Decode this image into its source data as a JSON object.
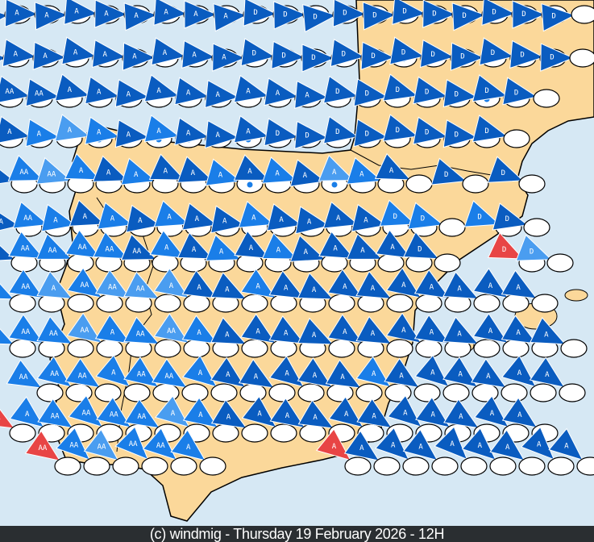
{
  "footer": {
    "credit": "(c) windmig - Thursday 19 February 2026 - 12H"
  },
  "colors": {
    "sea": "#d6e8f4",
    "land": "#fbd89a",
    "dark": "#0a5cc0",
    "mid": "#1a7ee8",
    "light": "#4a9df0",
    "red": "#e84545",
    "rain": "#1a7ee8"
  },
  "legend_note": "",
  "rows": [
    {
      "dir": 0,
      "tokens": [
        "A",
        "A",
        "A",
        "A",
        "A",
        "A",
        "A",
        "A",
        "A",
        "D",
        "D*",
        "D*",
        "D",
        "D*",
        "D*",
        "D",
        "D*",
        "D*",
        "D",
        "D"
      ]
    },
    {
      "dir": 5,
      "tokens": [
        "A",
        "A",
        "A",
        "A",
        "A",
        "A",
        "A",
        "A",
        "A",
        "D",
        "D",
        "D",
        "D",
        "D*",
        "D*",
        "D*",
        "D",
        "D*",
        "D*",
        "D"
      ]
    },
    {
      "dir": 10,
      "tokens": [
        "AA",
        "AA",
        "AA",
        "A",
        "A",
        "A",
        "A",
        "A",
        "A",
        "A",
        "A",
        "A",
        "D",
        "D",
        "D",
        "D*",
        "D*",
        "D",
        "D",
        "-"
      ]
    },
    {
      "dir": 10,
      "tokens": [
        "AA",
        "A",
        "A:m",
        "A*:l",
        "A:m",
        "A*",
        "A*:m",
        "A",
        "A*",
        "A*",
        "D",
        "D",
        "D",
        "D",
        "D",
        "D",
        "D",
        "D",
        "-",
        "-"
      ]
    },
    {
      "dir": 20,
      "tokens": [
        "AA",
        "AA:m",
        "AA:l",
        "A:m",
        "A",
        "A:m",
        "A",
        "A",
        "A*:m",
        "A",
        "A:m",
        "A*",
        "A:l",
        "A:m",
        "A",
        "-",
        "D",
        "-",
        "D",
        "-"
      ]
    },
    {
      "dir": 15,
      "tokens": [
        "AA",
        "AA:m",
        "A:m",
        "A",
        "A:m",
        "A",
        "A:m",
        "A",
        "A",
        "A:m",
        "A",
        "A",
        "A",
        "A",
        "D:m",
        "D:m",
        "-",
        "D:m",
        "D",
        "-"
      ]
    },
    {
      "dir": 25,
      "tokens": [
        "AA",
        "AA:m",
        "AA:m",
        "AA:m",
        "AA:m",
        "AA",
        "A:m",
        "A",
        "A:m",
        "A",
        "A:m",
        "A",
        "A",
        "A",
        "A",
        "D",
        "-",
        "-",
        "D:r",
        "D:l"
      ]
    },
    {
      "dir": 30,
      "tokens": [
        "AA:m",
        "AA:m",
        "A:l",
        "AA:m",
        "AA:l",
        "AA:l",
        "A:l",
        "A",
        "A",
        "A:m",
        "A",
        "A",
        "A",
        "A",
        "A",
        "A",
        "A",
        "A",
        "A",
        "-"
      ]
    },
    {
      "dir": 30,
      "tokens": [
        "AA:m",
        "AA:m",
        "AA:m",
        "AA:l",
        "A:m",
        "AA:m",
        "AA:l",
        "A:m",
        "A",
        "A",
        "A",
        "A",
        "A",
        "A",
        "A",
        "A",
        "A",
        "A",
        "A",
        "A"
      ]
    },
    {
      "dir": 35,
      "tokens": [
        "AA:m",
        "AA:m",
        "AA:m",
        "A:m",
        "AA:m",
        "AA:m",
        "A:m",
        "A",
        "A",
        "A",
        "A",
        "A",
        "A:m",
        "A",
        "A",
        "A",
        "A",
        "A",
        "A",
        "-"
      ]
    },
    {
      "dir": 35,
      "tokens": [
        "AA:r",
        "A:m",
        "AA:m",
        "AA:m",
        "AA:m",
        "AA:m",
        "A:l",
        "A:m",
        "A",
        "A",
        "A",
        "A",
        "A",
        "A",
        "A",
        "A",
        "A",
        "A",
        "A",
        "-"
      ]
    },
    {
      "dir": 40,
      "tokens": [
        "AA:r",
        "AA:m",
        "AA:l",
        "AA:m",
        "AA:m",
        "A:m",
        "-",
        "-",
        "-",
        "-",
        "A:r",
        "A",
        "A",
        "A",
        "A",
        "A",
        "A",
        "A",
        "A",
        "-"
      ]
    }
  ]
}
